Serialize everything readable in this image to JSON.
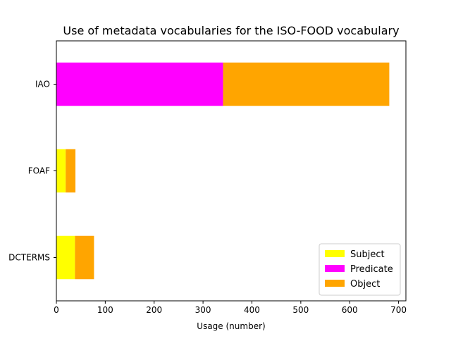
{
  "chart_data": {
    "type": "bar",
    "orientation": "horizontal",
    "stacked": true,
    "title": "Use of metadata vocabularies for the ISO-FOOD vocabulary",
    "xlabel": "Usage (number)",
    "ylabel": "",
    "categories": [
      "DCTERMS",
      "FOAF",
      "IAO"
    ],
    "series": [
      {
        "name": "Subject",
        "color": "#ffff00",
        "values": [
          38,
          19,
          0
        ]
      },
      {
        "name": "Predicate",
        "color": "#ff00ff",
        "values": [
          0,
          0,
          341
        ]
      },
      {
        "name": "Object",
        "color": "#ffa500",
        "values": [
          39,
          20,
          340
        ]
      }
    ],
    "xlim": [
      0,
      715
    ],
    "xticks": [
      0,
      100,
      200,
      300,
      400,
      500,
      600,
      700
    ],
    "grid": false,
    "legend_position": "lower right"
  }
}
